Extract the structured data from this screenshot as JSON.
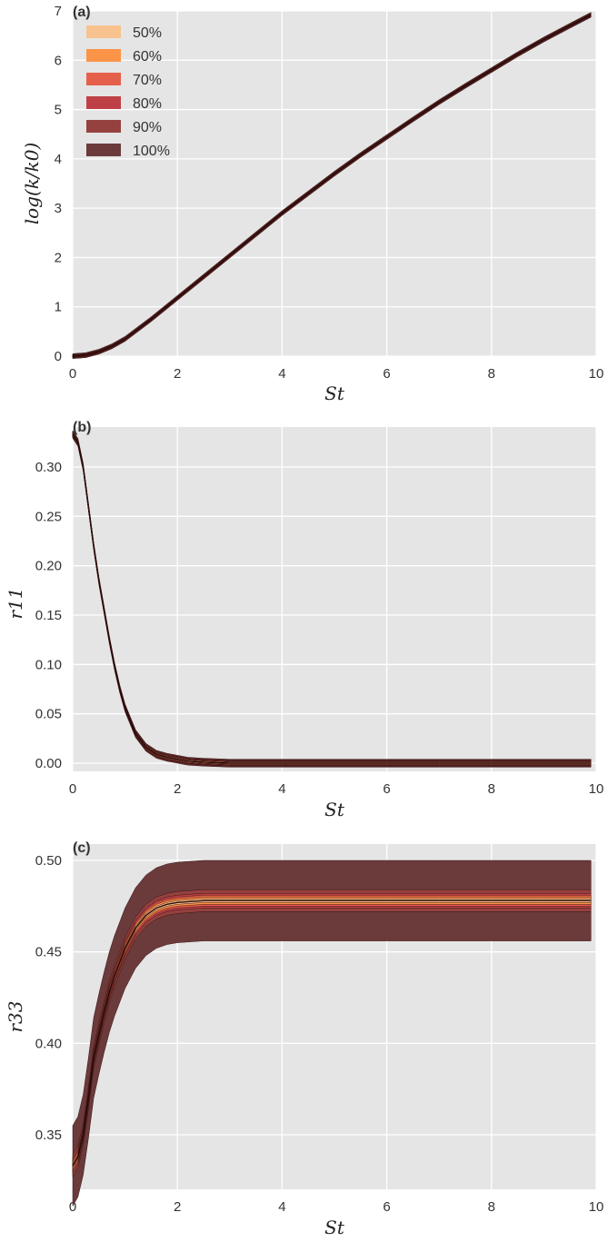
{
  "colors": {
    "background": "#e5e5e5",
    "grid": "#ffffff",
    "mean_line": "#2a0a0a",
    "bands": {
      "50%": "#f8c28f",
      "60%": "#fb9447",
      "70%": "#e5604a",
      "80%": "#bf3f46",
      "90%": "#94413f",
      "100%": "#6b3a3a"
    }
  },
  "chart_data": [
    {
      "panel": "(a)",
      "type": "area",
      "xlabel": "St",
      "ylabel": "log(k/k0)",
      "xlim": [
        0,
        10
      ],
      "ylim": [
        0,
        7
      ],
      "xticks": [
        "0",
        "2",
        "4",
        "6",
        "8",
        "10"
      ],
      "yticks": [
        "0",
        "1",
        "2",
        "3",
        "4",
        "5",
        "6",
        "7"
      ],
      "grid": true,
      "legend": {
        "placement": "top-left",
        "entries": [
          "50%",
          "60%",
          "70%",
          "80%",
          "90%",
          "100%"
        ]
      },
      "x": [
        0,
        0.25,
        0.5,
        0.75,
        1,
        1.5,
        2,
        2.5,
        3,
        3.5,
        4,
        4.5,
        5,
        5.5,
        6,
        6.5,
        7,
        7.5,
        8,
        8.5,
        9,
        9.5,
        9.9
      ],
      "series": [
        {
          "values": [
            0,
            0.02,
            0.09,
            0.2,
            0.35,
            0.75,
            1.18,
            1.61,
            2.04,
            2.47,
            2.9,
            3.3,
            3.7,
            4.08,
            4.44,
            4.8,
            5.15,
            5.48,
            5.8,
            6.12,
            6.42,
            6.7,
            6.92
          ],
          "band_halfwidth": {
            "50%": 0.01,
            "60%": 0.015,
            "70%": 0.02,
            "80%": 0.025,
            "90%": 0.035,
            "100%": 0.05
          }
        }
      ]
    },
    {
      "panel": "(b)",
      "type": "area",
      "xlabel": "St",
      "ylabel": "r11",
      "xlim": [
        0,
        10
      ],
      "ylim": [
        -0.01,
        0.34
      ],
      "xticks": [
        "0",
        "2",
        "4",
        "6",
        "8",
        "10"
      ],
      "yticks": [
        "0.00",
        "0.05",
        "0.10",
        "0.15",
        "0.20",
        "0.25",
        "0.30"
      ],
      "grid": true,
      "x": [
        0,
        0.1,
        0.2,
        0.3,
        0.4,
        0.5,
        0.6,
        0.7,
        0.8,
        0.9,
        1.0,
        1.2,
        1.4,
        1.6,
        1.8,
        2.0,
        2.2,
        2.5,
        3,
        4,
        5,
        6,
        7,
        8,
        9,
        9.9
      ],
      "series": [
        {
          "values": [
            0.333,
            0.325,
            0.3,
            0.26,
            0.22,
            0.185,
            0.155,
            0.125,
            0.098,
            0.075,
            0.056,
            0.03,
            0.016,
            0.009,
            0.006,
            0.004,
            0.002,
            0.001,
            0.0,
            0,
            0,
            0,
            0,
            0,
            0,
            0
          ],
          "band_halfwidth": {
            "50%": 0.001,
            "60%": 0.0015,
            "70%": 0.002,
            "80%": 0.0025,
            "90%": 0.003,
            "100%": 0.004
          }
        }
      ]
    },
    {
      "panel": "(c)",
      "type": "area",
      "xlabel": "St",
      "ylabel": "r33",
      "xlim": [
        0,
        10
      ],
      "ylim": [
        0.32,
        0.51
      ],
      "xticks": [
        "0",
        "2",
        "4",
        "6",
        "8",
        "10"
      ],
      "yticks": [
        "0.35",
        "0.40",
        "0.45",
        "0.50"
      ],
      "grid": true,
      "x": [
        0,
        0.1,
        0.2,
        0.3,
        0.4,
        0.5,
        0.6,
        0.7,
        0.8,
        1.0,
        1.2,
        1.4,
        1.6,
        1.8,
        2.0,
        2.5,
        3,
        4,
        5,
        6,
        7,
        8,
        9,
        9.9
      ],
      "series": [
        {
          "values": [
            0.333,
            0.338,
            0.35,
            0.37,
            0.392,
            0.405,
            0.417,
            0.428,
            0.437,
            0.452,
            0.463,
            0.47,
            0.474,
            0.476,
            0.477,
            0.478,
            0.478,
            0.478,
            0.478,
            0.478,
            0.478,
            0.478,
            0.478,
            0.478
          ],
          "band_halfwidth": {
            "50%": 0.001,
            "60%": 0.002,
            "70%": 0.003,
            "80%": 0.004,
            "90%": 0.006,
            "100%": 0.022
          }
        }
      ]
    }
  ]
}
